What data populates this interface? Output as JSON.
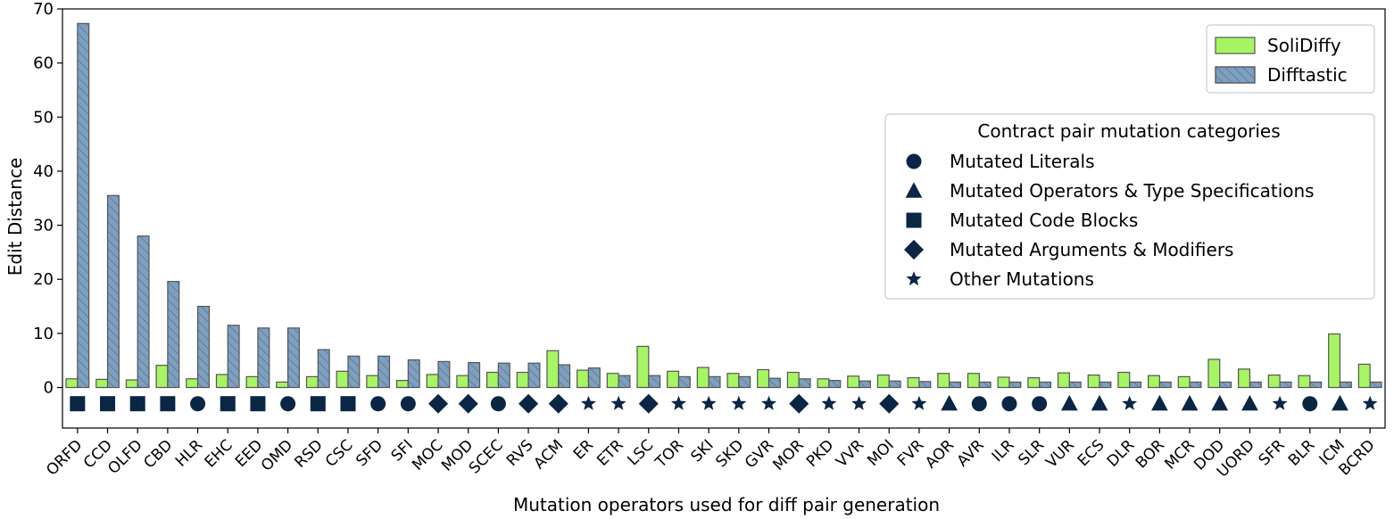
{
  "chart_data": {
    "type": "bar",
    "ylabel": "Edit Distance",
    "xlabel": "Mutation operators used for diff pair generation",
    "ylim": [
      -7.5,
      70
    ],
    "yticks": [
      0,
      10,
      20,
      30,
      40,
      50,
      60,
      70
    ],
    "grid": false,
    "categories": [
      "ORFD",
      "CCD",
      "OLFD",
      "CBD",
      "HLR",
      "EHC",
      "EED",
      "OMD",
      "RSD",
      "CSC",
      "SFD",
      "SFI",
      "MOC",
      "MOD",
      "SCEC",
      "RVS",
      "ACM",
      "ER",
      "ETR",
      "LSC",
      "TOR",
      "SKI",
      "SKD",
      "GVR",
      "MOR",
      "PKD",
      "VVR",
      "MOI",
      "FVR",
      "AOR",
      "AVR",
      "ILR",
      "SLR",
      "VUR",
      "ECS",
      "DLR",
      "BOR",
      "MCR",
      "DOD",
      "UORD",
      "SFR",
      "BLR",
      "ICM",
      "BCRD"
    ],
    "series": [
      {
        "name": "SoliDiffy",
        "color": "#a6f562",
        "values": [
          1.6,
          1.5,
          1.4,
          4.1,
          1.6,
          2.4,
          2.0,
          1.0,
          2.0,
          3.0,
          2.2,
          1.3,
          2.4,
          2.2,
          2.8,
          2.8,
          6.8,
          3.2,
          2.6,
          7.6,
          3.0,
          3.7,
          2.6,
          3.3,
          2.8,
          1.6,
          2.1,
          2.3,
          1.8,
          2.6,
          2.6,
          1.9,
          1.8,
          2.7,
          2.3,
          2.8,
          2.2,
          2.0,
          5.2,
          3.4,
          2.3,
          2.2,
          9.9,
          4.3
        ]
      },
      {
        "name": "Difftastic",
        "color": "#7d9fc0",
        "hatch": "diagonal",
        "values": [
          67.3,
          35.5,
          28.0,
          19.6,
          15.0,
          11.5,
          11.0,
          11.0,
          7.0,
          5.8,
          5.8,
          5.1,
          4.8,
          4.6,
          4.5,
          4.5,
          4.2,
          3.6,
          2.2,
          2.2,
          2.0,
          2.0,
          2.0,
          1.7,
          1.6,
          1.3,
          1.2,
          1.2,
          1.1,
          1.0,
          1.0,
          1.0,
          1.0,
          1.0,
          1.0,
          1.0,
          1.0,
          1.0,
          1.0,
          1.0,
          1.0,
          1.0,
          1.0,
          1.0
        ]
      }
    ],
    "marker_row": {
      "y": -3,
      "color": "#0b2545",
      "categories": [
        "square",
        "square",
        "square",
        "square",
        "circle",
        "square",
        "square",
        "circle",
        "square",
        "square",
        "circle",
        "circle",
        "diamond",
        "diamond",
        "circle",
        "diamond",
        "diamond",
        "star",
        "star",
        "diamond",
        "star",
        "star",
        "star",
        "star",
        "diamond",
        "star",
        "star",
        "diamond",
        "star",
        "triangle",
        "circle",
        "circle",
        "circle",
        "triangle",
        "triangle",
        "star",
        "triangle",
        "triangle",
        "triangle",
        "triangle",
        "star",
        "circle",
        "triangle",
        "star"
      ]
    },
    "legend": {
      "placement": "top-right",
      "entries": [
        "SoliDiffy",
        "Difftastic"
      ]
    },
    "category_legend": {
      "placement": "center-right",
      "title": "Contract pair mutation categories",
      "entries": [
        {
          "marker": "circle",
          "label": "Mutated Literals"
        },
        {
          "marker": "triangle",
          "label": "Mutated Operators & Type Specifications"
        },
        {
          "marker": "square",
          "label": "Mutated Code Blocks"
        },
        {
          "marker": "diamond",
          "label": "Mutated Arguments & Modifiers"
        },
        {
          "marker": "star",
          "label": "Other Mutations"
        }
      ]
    }
  }
}
